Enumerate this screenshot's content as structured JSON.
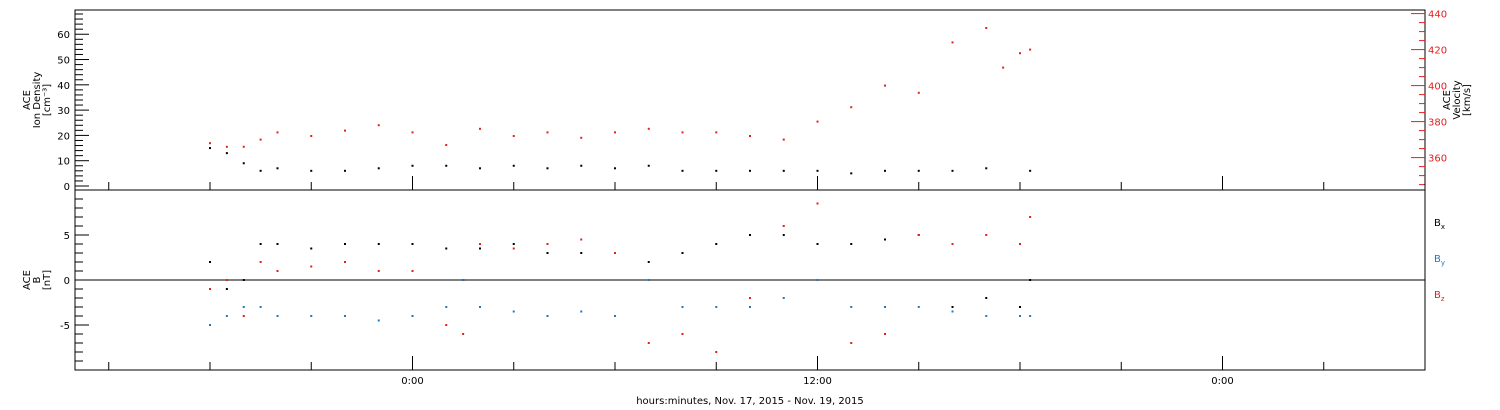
{
  "chart_data": [
    {
      "type": "scatter",
      "panel": "top",
      "ylabel_left": [
        "ACE",
        "Ion Density",
        "[cm⁻³]"
      ],
      "ylabel_right": [
        "ACE",
        "Velocity",
        "[km/s]"
      ],
      "ylim_left": [
        0,
        68
      ],
      "ylim_right": [
        342,
        442
      ],
      "yticks_left": [
        "0",
        "10",
        "20",
        "30",
        "40",
        "50",
        "60"
      ],
      "yticks_right": [
        "360",
        "380",
        "400",
        "420",
        "440"
      ],
      "grid": false,
      "series": [
        {
          "name": "Ion Density",
          "axis": "left",
          "color": "#000000",
          "points": [
            [
              -6.0,
              15
            ],
            [
              -5.5,
              13
            ],
            [
              -5.0,
              9
            ],
            [
              -4.5,
              6
            ],
            [
              -4,
              7
            ],
            [
              -3,
              6
            ],
            [
              -2,
              6
            ],
            [
              -1,
              7
            ],
            [
              0,
              8
            ],
            [
              1,
              8
            ],
            [
              2,
              7
            ],
            [
              3,
              8
            ],
            [
              4,
              7
            ],
            [
              5,
              8
            ],
            [
              6,
              7
            ],
            [
              7,
              8
            ],
            [
              8,
              6
            ],
            [
              9,
              6
            ],
            [
              10,
              6
            ],
            [
              11,
              6
            ],
            [
              12,
              6
            ],
            [
              13,
              5
            ],
            [
              14,
              6
            ],
            [
              15,
              6
            ],
            [
              16,
              6
            ],
            [
              17,
              7
            ],
            [
              18.3,
              6
            ]
          ]
        },
        {
          "name": "Velocity",
          "axis": "right",
          "color": "#e02020",
          "points": [
            [
              -6.0,
              368
            ],
            [
              -5.5,
              366
            ],
            [
              -5.0,
              366
            ],
            [
              -4.5,
              370
            ],
            [
              -4,
              374
            ],
            [
              -3,
              372
            ],
            [
              -2,
              375
            ],
            [
              -1,
              378
            ],
            [
              0,
              374
            ],
            [
              1,
              367
            ],
            [
              2,
              376
            ],
            [
              3,
              372
            ],
            [
              4,
              374
            ],
            [
              5,
              371
            ],
            [
              6,
              374
            ],
            [
              7,
              376
            ],
            [
              8,
              374
            ],
            [
              9,
              374
            ],
            [
              10,
              372
            ],
            [
              11,
              370
            ],
            [
              12,
              380
            ],
            [
              13,
              388
            ],
            [
              14,
              400
            ],
            [
              15,
              396
            ],
            [
              16,
              424
            ],
            [
              17,
              432
            ],
            [
              17.5,
              410
            ],
            [
              18,
              418
            ],
            [
              18.3,
              420
            ]
          ]
        }
      ]
    },
    {
      "type": "scatter",
      "panel": "bottom",
      "ylabel": [
        "ACE",
        "B",
        "[nT]"
      ],
      "ylim": [
        -10,
        10
      ],
      "yticks": [
        "-5",
        "0",
        "5"
      ],
      "legend": [
        "Bx",
        "By",
        "Bz"
      ],
      "legend_position": "right",
      "grid": false,
      "series": [
        {
          "name": "Bx",
          "color": "#000000",
          "points": [
            [
              -6.0,
              2
            ],
            [
              -5.5,
              -1
            ],
            [
              -5,
              0
            ],
            [
              -4.5,
              4
            ],
            [
              -4,
              4
            ],
            [
              -3,
              3.5
            ],
            [
              -2,
              4
            ],
            [
              -1,
              4
            ],
            [
              0,
              4
            ],
            [
              1,
              3.5
            ],
            [
              1.5,
              0
            ],
            [
              2,
              3.5
            ],
            [
              3,
              4
            ],
            [
              4,
              3
            ],
            [
              5,
              3
            ],
            [
              6,
              3
            ],
            [
              7,
              2
            ],
            [
              8,
              3
            ],
            [
              9,
              4
            ],
            [
              10,
              5
            ],
            [
              11,
              5
            ],
            [
              12,
              4
            ],
            [
              13,
              4
            ],
            [
              14,
              4.5
            ],
            [
              15,
              5
            ],
            [
              16,
              -3
            ],
            [
              17,
              -2
            ],
            [
              18,
              -3
            ],
            [
              18.3,
              0
            ]
          ]
        },
        {
          "name": "By",
          "color": "#1e78c8",
          "points": [
            [
              -6.0,
              -5
            ],
            [
              -5.5,
              -4
            ],
            [
              -5,
              -3
            ],
            [
              -4.5,
              -3
            ],
            [
              -4,
              -4
            ],
            [
              -3,
              -4
            ],
            [
              -2,
              -4
            ],
            [
              -1,
              -4.5
            ],
            [
              0,
              -4
            ],
            [
              1,
              -3
            ],
            [
              1.5,
              0
            ],
            [
              2,
              -3
            ],
            [
              3,
              -3.5
            ],
            [
              4,
              -4
            ],
            [
              5,
              -3.5
            ],
            [
              6,
              -4
            ],
            [
              7,
              0
            ],
            [
              8,
              -3
            ],
            [
              9,
              -3
            ],
            [
              10,
              -3
            ],
            [
              11,
              -2
            ],
            [
              12,
              0
            ],
            [
              13,
              -3
            ],
            [
              14,
              -3
            ],
            [
              15,
              -3
            ],
            [
              16,
              -3.5
            ],
            [
              17,
              -4
            ],
            [
              18,
              -4
            ],
            [
              18.3,
              -4
            ]
          ]
        },
        {
          "name": "Bz",
          "color": "#e02020",
          "points": [
            [
              -6.0,
              -1
            ],
            [
              -5.5,
              0
            ],
            [
              -5,
              -4
            ],
            [
              -4.5,
              2
            ],
            [
              -4,
              1
            ],
            [
              -3,
              1.5
            ],
            [
              -2,
              2
            ],
            [
              -1,
              1
            ],
            [
              0,
              1
            ],
            [
              1,
              -5
            ],
            [
              1.5,
              -6
            ],
            [
              2,
              4
            ],
            [
              3,
              3.5
            ],
            [
              4,
              4
            ],
            [
              5,
              4.5
            ],
            [
              6,
              3
            ],
            [
              7,
              -7
            ],
            [
              8,
              -6
            ],
            [
              9,
              -8
            ],
            [
              10,
              -2
            ],
            [
              11,
              6
            ],
            [
              12,
              8.5
            ],
            [
              13,
              -7
            ],
            [
              14,
              -6
            ],
            [
              15,
              5
            ],
            [
              16,
              4
            ],
            [
              17,
              5
            ],
            [
              18,
              4
            ],
            [
              18.3,
              7
            ]
          ]
        }
      ]
    }
  ],
  "xaxis": {
    "label": "hours:minutes, Nov. 17, 2015 - Nov. 19, 2015",
    "xlim": [
      -10,
      30
    ],
    "tick_labels": [
      {
        "hour": 0,
        "label": "0:00"
      },
      {
        "hour": 12,
        "label": "12:00"
      },
      {
        "hour": 24,
        "label": "0:00"
      }
    ]
  },
  "legend": {
    "bx": {
      "base": "B",
      "sub": "x",
      "color": "#000000"
    },
    "by": {
      "base": "B",
      "sub": "y",
      "color": "#1e78c8"
    },
    "bz": {
      "base": "B",
      "sub": "z",
      "color": "#e02020"
    }
  },
  "colors": {
    "black": "#000000",
    "red": "#e02020",
    "blue": "#1e78c8"
  }
}
